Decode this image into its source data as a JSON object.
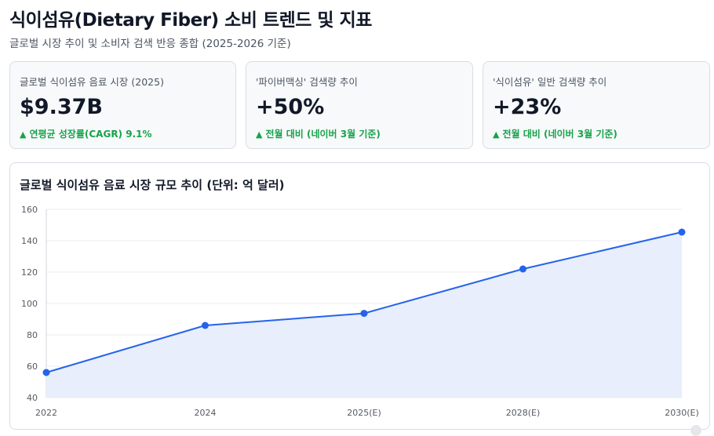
{
  "header": {
    "title": "식이섬유(Dietary Fiber) 소비 트렌드 및 지표",
    "subtitle": "글로벌 시장 추이 및 소비자 검색 반응 종합 (2025-2026 기준)"
  },
  "cards": [
    {
      "label": "글로벌 식이섬유 음료 시장 (2025)",
      "value": "$9.37B",
      "arrow": "▲",
      "delta": "연평균 성장률(CAGR) 9.1%"
    },
    {
      "label": "'파이버맥싱' 검색량 추이",
      "value": "+50%",
      "arrow": "▲",
      "delta": "전월 대비 (네이버 3월 기준)"
    },
    {
      "label": "'식이섬유' 일반 검색량 추이",
      "value": "+23%",
      "arrow": "▲",
      "delta": "전월 대비 (네이버 3월 기준)"
    }
  ],
  "chart_data": {
    "type": "area",
    "title": "글로벌 식이섬유 음료 시장 규모 추이 (단위: 억 달러)",
    "categories": [
      "2022",
      "2024",
      "2025(E)",
      "2028(E)",
      "2030(E)"
    ],
    "series": [
      {
        "values": [
          56,
          86,
          93.7,
          122,
          145.5
        ]
      }
    ],
    "ylim": [
      40,
      160
    ],
    "yticks": [
      40,
      60,
      80,
      100,
      120,
      140,
      160
    ],
    "grid": true,
    "colors": {
      "line": "#2563eb",
      "fill": "#e8eefb",
      "grid": "#eceef1"
    }
  }
}
